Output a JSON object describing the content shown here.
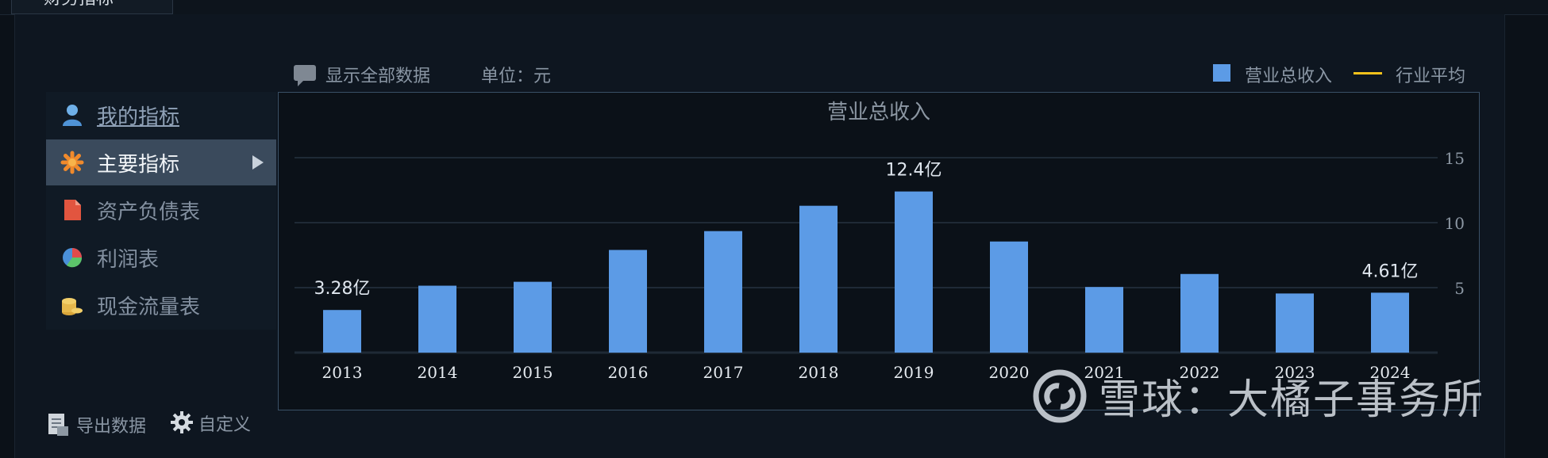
{
  "tab": {
    "label": "财务指标"
  },
  "toolbar": {
    "show_all": "显示全部数据",
    "unit": "单位：元",
    "legend_revenue": "营业总收入",
    "legend_industry": "行业平均"
  },
  "sidebar": {
    "items": [
      {
        "label": "我的指标"
      },
      {
        "label": "主要指标"
      },
      {
        "label": "资产负债表"
      },
      {
        "label": "利润表"
      },
      {
        "label": "现金流量表"
      }
    ]
  },
  "footer": {
    "export": "导出数据",
    "custom": "自定义"
  },
  "watermark": {
    "text": "雪球：大橘子事务所"
  },
  "colors": {
    "bar": "#5c9be6",
    "industry_line": "#f5c21b",
    "background": "#0b1118"
  },
  "chart_data": {
    "type": "bar",
    "title": "营业总收入",
    "categories": [
      "2013",
      "2014",
      "2015",
      "2016",
      "2017",
      "2018",
      "2019",
      "2020",
      "2021",
      "2022",
      "2023",
      "2024"
    ],
    "series": [
      {
        "name": "营业总收入",
        "values": [
          3.28,
          5.15,
          5.45,
          7.9,
          9.35,
          11.3,
          12.4,
          8.55,
          5.05,
          6.05,
          4.55,
          4.61
        ]
      }
    ],
    "unit": "亿",
    "data_labels": [
      {
        "category": "2013",
        "text": "3.28亿"
      },
      {
        "category": "2019",
        "text": "12.4亿"
      },
      {
        "category": "2024",
        "text": "4.61亿"
      }
    ],
    "y_ticks": [
      5,
      10,
      15
    ],
    "ylim": [
      0,
      15
    ],
    "y_axis_side": "right",
    "grid": true,
    "legend": "top-right"
  }
}
